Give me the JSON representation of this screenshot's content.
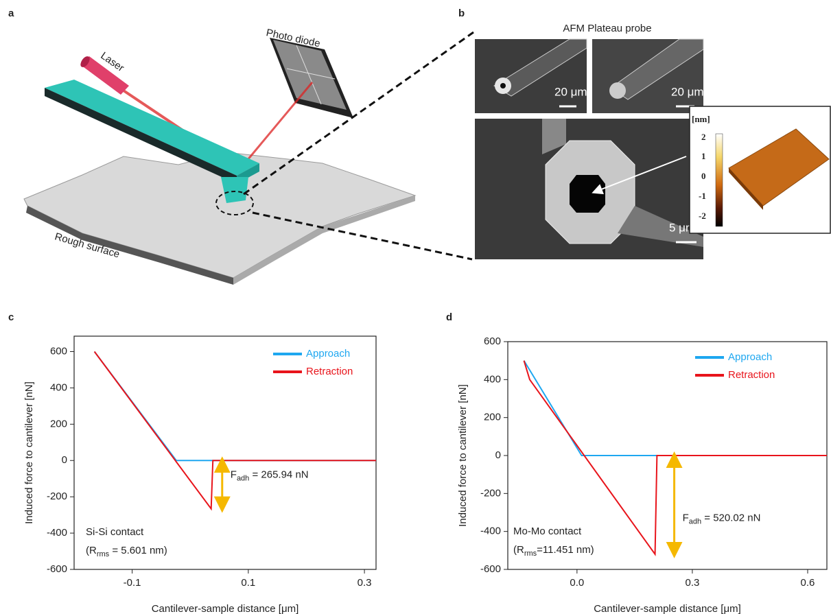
{
  "panel_labels": [
    "a",
    "b",
    "c",
    "d"
  ],
  "illustration": {
    "labels": [
      "Laser",
      "Photo diode",
      "Rough surface"
    ]
  },
  "sem": {
    "title": "AFM Plateau probe",
    "scale_bars": [
      "20 μm",
      "20 μm",
      "5 μm"
    ],
    "colorbar": {
      "unit": "[nm]",
      "ticks": [
        "2",
        "1",
        "0",
        "-1",
        "-2"
      ]
    }
  },
  "chart_data": [
    {
      "type": "line",
      "xlabel": "Cantilever-sample  distance [μm]",
      "ylabel": "Induced force to cantilever  [nN]",
      "xlim": [
        -0.2,
        0.32
      ],
      "ylim": [
        -600,
        685
      ],
      "xticks": [
        -0.1,
        0.1,
        0.3
      ],
      "yticks": [
        600,
        400,
        200,
        0,
        -200,
        -400,
        -600
      ],
      "legend": "upper right",
      "series": [
        {
          "name": "Approach",
          "color": "#1ea7f0",
          "x": [
            -0.165,
            -0.024,
            0.32
          ],
          "values": [
            600,
            0,
            0
          ]
        },
        {
          "name": "Retraction",
          "color": "#e8141b",
          "x": [
            -0.165,
            0.036,
            0.039,
            0.32
          ],
          "values": [
            600,
            -265.94,
            0,
            0
          ]
        }
      ],
      "annotation": {
        "symbol": "F",
        "subscript": "adh",
        "text": " = 265.94  nN"
      },
      "contact": {
        "title": "Si-Si contact",
        "symbol": "(R",
        "subscript": "rms",
        "text": " = 5.601 nm)"
      }
    },
    {
      "type": "line",
      "xlabel": "Cantilever-sample  distance [μm]",
      "ylabel": "Induced force to cantilever  [nN]",
      "xlim": [
        -0.18,
        0.65
      ],
      "ylim": [
        -600,
        600
      ],
      "xticks": [
        {
          "value": 0,
          "label": "0.0"
        },
        0.3,
        0.6
      ],
      "yticks": [
        600,
        400,
        200,
        0,
        -200,
        -400,
        -600
      ],
      "legend": "upper right",
      "series": [
        {
          "name": "Approach",
          "color": "#1ea7f0",
          "x": [
            -0.138,
            0.012,
            0.65
          ],
          "values": [
            500,
            0,
            0
          ]
        },
        {
          "name": "Retraction",
          "color": "#e8141b",
          "x": [
            -0.138,
            -0.123,
            0.203,
            0.208,
            0.65
          ],
          "values": [
            500,
            400,
            -520.02,
            0,
            0
          ]
        }
      ],
      "annotation": {
        "symbol": "F",
        "subscript": "adh",
        "text": " = 520.02  nN"
      },
      "contact": {
        "title": "Mo-Mo contact",
        "symbol": "(R",
        "subscript": "rms",
        "text": "=11.451 nm)"
      }
    }
  ]
}
